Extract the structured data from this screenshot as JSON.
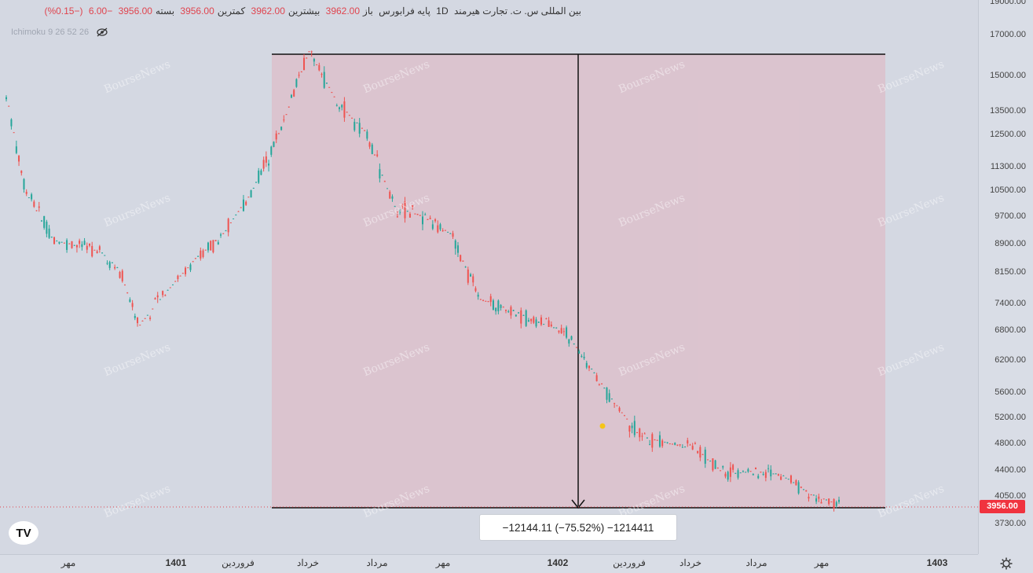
{
  "legend": {
    "symbol_name": "بین المللی س. ت. تجارت هیرمند",
    "interval": "1D",
    "market": "پایه فرابورس",
    "open_label": "باز",
    "open_value": "3962.00",
    "high_label": "بیشترین",
    "high_value": "3962.00",
    "low_label": "کمترین",
    "low_value": "3956.00",
    "close_label": "بسته",
    "close_value": "3956.00",
    "change": "−6.00",
    "change_pct": "(−0.15%)"
  },
  "indicator": {
    "label": "Ichimoku 9 26 52 26",
    "icon": "eye-off-icon"
  },
  "measure": {
    "text": "−12144.11 (−75.52%) −1214411"
  },
  "current_price": "3956.00",
  "watermark": "BourseNews",
  "logo": "TV",
  "chart_data": {
    "type": "candlestick",
    "y_scale": "log",
    "price_ticks": [
      "19000.00",
      "17000.00",
      "15000.00",
      "13500.00",
      "12500.00",
      "11300.00",
      "10500.00",
      "9700.00",
      "8900.00",
      "8150.00",
      "7400.00",
      "6800.00",
      "6200.00",
      "5600.00",
      "5200.00",
      "4800.00",
      "4400.00",
      "4050.00",
      "3730.00"
    ],
    "time_ticks": [
      "مهر",
      "1401",
      "فروردین",
      "خرداد",
      "مرداد",
      "مهر",
      "1402",
      "فروردین",
      "خرداد",
      "مرداد",
      "مهر",
      "1403"
    ],
    "approx_path": [
      {
        "x": 0,
        "y": 14200
      },
      {
        "x": 10,
        "y": 10500
      },
      {
        "x": 25,
        "y": 9000
      },
      {
        "x": 50,
        "y": 8700
      },
      {
        "x": 60,
        "y": 8200
      },
      {
        "x": 70,
        "y": 6900
      },
      {
        "x": 85,
        "y": 7700
      },
      {
        "x": 100,
        "y": 8500
      },
      {
        "x": 115,
        "y": 9200
      },
      {
        "x": 130,
        "y": 10500
      },
      {
        "x": 145,
        "y": 12700
      },
      {
        "x": 160,
        "y": 16200
      },
      {
        "x": 175,
        "y": 13800
      },
      {
        "x": 190,
        "y": 12600
      },
      {
        "x": 205,
        "y": 10000
      },
      {
        "x": 220,
        "y": 9700
      },
      {
        "x": 235,
        "y": 9200
      },
      {
        "x": 250,
        "y": 7500
      },
      {
        "x": 265,
        "y": 7300
      },
      {
        "x": 280,
        "y": 7000
      },
      {
        "x": 295,
        "y": 6800
      },
      {
        "x": 310,
        "y": 6000
      },
      {
        "x": 320,
        "y": 5500
      },
      {
        "x": 335,
        "y": 4900
      },
      {
        "x": 350,
        "y": 4800
      },
      {
        "x": 365,
        "y": 4700
      },
      {
        "x": 380,
        "y": 4350
      },
      {
        "x": 395,
        "y": 4400
      },
      {
        "x": 410,
        "y": 4350
      },
      {
        "x": 425,
        "y": 4100
      },
      {
        "x": 440,
        "y": 3960
      }
    ],
    "measurement": {
      "start_price": 16100,
      "end_price": 3940,
      "change": "−12144.11",
      "change_pct": "−75.52%"
    }
  }
}
